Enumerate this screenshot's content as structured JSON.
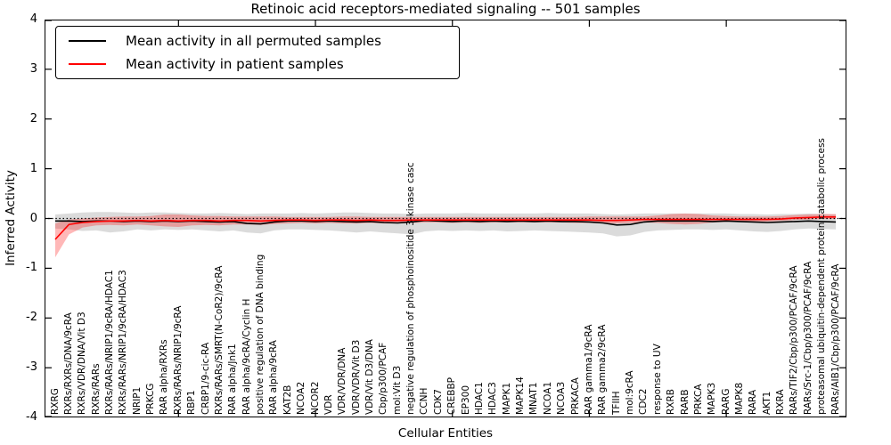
{
  "chart_data": {
    "type": "line",
    "title": "Retinoic acid receptors-mediated signaling -- 501 samples",
    "xlabel": "Cellular Entities",
    "ylabel": "Inferred Activity",
    "ylim": [
      -4,
      4
    ],
    "yticks": [
      4,
      3,
      2,
      1,
      0,
      -1,
      -2,
      -3,
      -4
    ],
    "x_major_tick_indices": [
      9,
      19,
      29,
      39,
      49
    ],
    "grid": false,
    "zero_reference_line": 0,
    "legend_position": "upper left",
    "colors": {
      "permuted_line": "#000000",
      "patient_line": "#ff0000",
      "permuted_band": "rgba(0,0,0,0.14)",
      "patient_band": "rgba(255,0,0,0.28)",
      "axes": "#000000",
      "background": "#ffffff"
    },
    "categories": [
      "RXRG",
      "RXRs/RXRs/DNA/9cRA",
      "RXRs/VDR/DNA/Vit D3",
      "RXRs/RARs",
      "RXRs/RARs/NRIP1/9cRA/HDAC1",
      "RXRs/RARs/NRIP1/9cRA/HDAC3",
      "NRIP1",
      "PRKCG",
      "RAR alpha/RXRs",
      "RXRs/RARs/NRIP1/9cRA",
      "RBP1",
      "CRBP1/9-cic-RA",
      "RXRs/RARs/SMRT(N-CoR2)/9cRA",
      "RAR alpha/Jnk1",
      "RAR alpha/9cRA/Cyclin H",
      "positive regulation of DNA binding",
      "RAR alpha/9cRA",
      "KAT2B",
      "NCOA2",
      "NCOR2",
      "VDR",
      "VDR/VDR/DNA",
      "VDR/VDR/Vit D3",
      "VDR/Vit D3/DNA",
      "Cbp/p300/PCAF",
      "mol:Vit D3",
      "negative regulation of phosphoinositide 3-kinase casc",
      "CCNH",
      "CDK7",
      "CREBBP",
      "EP300",
      "HDAC1",
      "HDAC3",
      "MAPK1",
      "MAPK14",
      "MNAT1",
      "NCOA1",
      "NCOA3",
      "PRKACA",
      "RAR gamma1/9cRA",
      "RAR gamma2/9cRA",
      "TFIIH",
      "mol:9cRA",
      "CDC2",
      "response to UV",
      "RXRB",
      "RARB",
      "PRKCA",
      "MAPK3",
      "RARG",
      "MAPK8",
      "RARA",
      "AKT1",
      "RXRA",
      "RARs/TIF2/Cbp/p300/PCAF/9cRA",
      "RARs/Src-1/Cbp/p300/PCAF/9cRA",
      "proteasomal ubiquitin-dependent protein catabolic process",
      "RARs/AIB1/Cbp/p300/PCAF/9cRA"
    ],
    "series": [
      {
        "name": "Mean activity in all permuted samples",
        "color": "#000000",
        "values": [
          -0.05,
          -0.05,
          -0.06,
          -0.05,
          -0.05,
          -0.06,
          -0.05,
          -0.06,
          -0.05,
          -0.06,
          -0.05,
          -0.06,
          -0.07,
          -0.06,
          -0.1,
          -0.11,
          -0.07,
          -0.05,
          -0.05,
          -0.06,
          -0.05,
          -0.06,
          -0.07,
          -0.06,
          -0.08,
          -0.09,
          -0.07,
          -0.04,
          -0.05,
          -0.06,
          -0.05,
          -0.06,
          -0.05,
          -0.06,
          -0.05,
          -0.06,
          -0.05,
          -0.06,
          -0.06,
          -0.07,
          -0.09,
          -0.13,
          -0.12,
          -0.07,
          -0.05,
          -0.05,
          -0.05,
          -0.05,
          -0.06,
          -0.05,
          -0.06,
          -0.07,
          -0.08,
          -0.07,
          -0.06,
          -0.05,
          -0.06,
          -0.07
        ],
        "band_upper": [
          0.08,
          0.1,
          0.12,
          0.13,
          0.13,
          0.12,
          0.11,
          0.12,
          0.12,
          0.11,
          0.1,
          0.1,
          0.11,
          0.1,
          0.09,
          0.1,
          0.1,
          0.1,
          0.11,
          0.1,
          0.11,
          0.12,
          0.12,
          0.11,
          0.1,
          0.1,
          0.09,
          0.1,
          0.1,
          0.1,
          0.11,
          0.1,
          0.1,
          0.1,
          0.1,
          0.1,
          0.11,
          0.1,
          0.1,
          0.1,
          0.09,
          0.08,
          0.09,
          0.1,
          0.1,
          0.1,
          0.1,
          0.1,
          0.1,
          0.1,
          0.09,
          0.09,
          0.08,
          0.09,
          0.09,
          0.1,
          0.09,
          0.08
        ],
        "band_lower": [
          -0.2,
          -0.22,
          -0.25,
          -0.24,
          -0.28,
          -0.26,
          -0.22,
          -0.24,
          -0.22,
          -0.23,
          -0.22,
          -0.24,
          -0.26,
          -0.24,
          -0.28,
          -0.3,
          -0.24,
          -0.22,
          -0.22,
          -0.23,
          -0.24,
          -0.26,
          -0.28,
          -0.26,
          -0.28,
          -0.3,
          -0.32,
          -0.26,
          -0.24,
          -0.25,
          -0.24,
          -0.25,
          -0.24,
          -0.26,
          -0.25,
          -0.24,
          -0.25,
          -0.26,
          -0.27,
          -0.28,
          -0.3,
          -0.36,
          -0.34,
          -0.27,
          -0.24,
          -0.23,
          -0.22,
          -0.22,
          -0.23,
          -0.22,
          -0.24,
          -0.26,
          -0.27,
          -0.25,
          -0.22,
          -0.2,
          -0.21,
          -0.22
        ]
      },
      {
        "name": "Mean activity in patient samples",
        "color": "#ff0000",
        "values": [
          -0.42,
          -0.12,
          -0.08,
          -0.06,
          -0.05,
          -0.05,
          -0.04,
          -0.05,
          -0.04,
          -0.05,
          -0.04,
          -0.04,
          -0.05,
          -0.04,
          -0.04,
          -0.05,
          -0.04,
          -0.03,
          -0.03,
          -0.04,
          -0.03,
          -0.03,
          -0.04,
          -0.03,
          -0.04,
          -0.04,
          -0.03,
          -0.03,
          -0.03,
          -0.03,
          -0.03,
          -0.03,
          -0.03,
          -0.03,
          -0.03,
          -0.03,
          -0.03,
          -0.03,
          -0.03,
          -0.03,
          -0.04,
          -0.04,
          -0.03,
          -0.02,
          -0.02,
          -0.02,
          -0.02,
          -0.02,
          -0.02,
          -0.02,
          -0.02,
          -0.02,
          -0.02,
          -0.01,
          0.01,
          0.02,
          0.03,
          0.03
        ],
        "band_upper": [
          -0.1,
          -0.02,
          0.0,
          0.02,
          0.03,
          0.04,
          0.04,
          0.05,
          0.08,
          0.08,
          0.06,
          0.05,
          0.05,
          0.04,
          0.04,
          0.04,
          0.04,
          0.03,
          0.03,
          0.03,
          0.03,
          0.04,
          0.04,
          0.03,
          0.03,
          0.03,
          0.03,
          0.03,
          0.03,
          0.03,
          0.03,
          0.03,
          0.03,
          0.03,
          0.03,
          0.03,
          0.03,
          0.03,
          0.03,
          0.04,
          0.04,
          0.04,
          0.04,
          0.04,
          0.06,
          0.09,
          0.1,
          0.09,
          0.06,
          0.05,
          0.04,
          0.04,
          0.04,
          0.05,
          0.07,
          0.08,
          0.09,
          0.09
        ],
        "band_lower": [
          -0.78,
          -0.32,
          -0.18,
          -0.14,
          -0.13,
          -0.14,
          -0.12,
          -0.14,
          -0.16,
          -0.17,
          -0.14,
          -0.13,
          -0.14,
          -0.12,
          -0.12,
          -0.13,
          -0.11,
          -0.1,
          -0.09,
          -0.1,
          -0.09,
          -0.1,
          -0.1,
          -0.09,
          -0.1,
          -0.1,
          -0.09,
          -0.08,
          -0.08,
          -0.09,
          -0.08,
          -0.09,
          -0.08,
          -0.08,
          -0.08,
          -0.08,
          -0.08,
          -0.08,
          -0.09,
          -0.09,
          -0.1,
          -0.1,
          -0.09,
          -0.08,
          -0.09,
          -0.11,
          -0.12,
          -0.11,
          -0.08,
          -0.07,
          -0.07,
          -0.07,
          -0.06,
          -0.05,
          -0.03,
          -0.02,
          -0.01,
          -0.01
        ]
      }
    ]
  }
}
